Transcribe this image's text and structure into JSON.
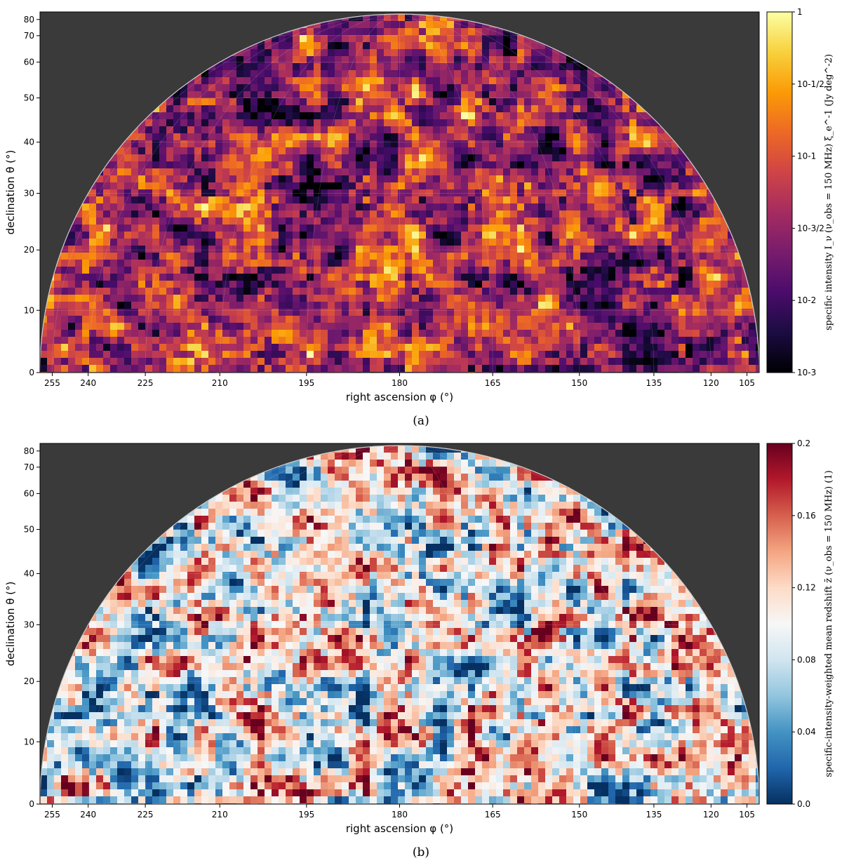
{
  "chart_data": [
    {
      "type": "heatmap",
      "panel": "(a)",
      "projection": "orthographic sky map (upper hemisphere)",
      "xlabel": "right ascension φ (°)",
      "ylabel": "declination θ (°)",
      "x_ticks": [
        255,
        240,
        225,
        210,
        195,
        180,
        165,
        150,
        135,
        120,
        105
      ],
      "y_ticks": [
        0,
        10,
        20,
        30,
        40,
        50,
        60,
        70,
        80
      ],
      "xlim": [
        258,
        102
      ],
      "ylim": [
        0,
        82
      ],
      "colormap": "inferno",
      "colorbar": {
        "label": "specific intensity I_ν (ν_obs = 150 MHz) ξ_e^-1 (Jy deg^-2)",
        "scale": "log",
        "min": 0.001,
        "max": 1,
        "tick_labels": [
          "10^-3",
          "10^-2",
          "10^-3/2",
          "10^-1",
          "10^-1/2",
          "1"
        ]
      },
      "background": "#3a3a3a",
      "grid": true
    },
    {
      "type": "heatmap",
      "panel": "(b)",
      "projection": "orthographic sky map (upper hemisphere)",
      "xlabel": "right ascension φ (°)",
      "ylabel": "declination θ (°)",
      "x_ticks": [
        255,
        240,
        225,
        210,
        195,
        180,
        165,
        150,
        135,
        120,
        105
      ],
      "y_ticks": [
        0,
        10,
        20,
        30,
        40,
        50,
        60,
        70,
        80
      ],
      "xlim": [
        258,
        102
      ],
      "ylim": [
        0,
        82
      ],
      "colormap": "RdBu_r",
      "colorbar": {
        "label": "specific-intensity-weighted mean redshift z̄ (ν_obs = 150 MHz) (1)",
        "scale": "linear",
        "min": 0.0,
        "max": 0.2,
        "tick_labels": [
          "0.0",
          "0.04",
          "0.08",
          "0.12",
          "0.16",
          "0.2"
        ]
      },
      "background": "#3a3a3a",
      "grid": true
    }
  ],
  "panels": {
    "a": {
      "tag": "(a)",
      "xlabel": "right ascension φ (°)",
      "ylabel": "declination θ (°)",
      "cb_label": "specific intensity I_ν (ν_obs = 150 MHz) ξ_e^-1 (Jy deg^-2)"
    },
    "b": {
      "tag": "(b)",
      "xlabel": "right ascension φ (°)",
      "ylabel": "declination θ (°)",
      "cb_label": "specific-intensity-weighted mean redshift z̄ (ν_obs = 150 MHz) (1)"
    }
  },
  "colors": {
    "background_outside_sky": "#3a3a3a",
    "inferno_stops": [
      "#000004",
      "#1b0c41",
      "#4a0c6b",
      "#781c6d",
      "#a52c60",
      "#cf4446",
      "#ed6925",
      "#fb9b06",
      "#f7d13d",
      "#fcffa4"
    ],
    "rdbu_stops": [
      "#053061",
      "#2166ac",
      "#4393c3",
      "#92c5de",
      "#d1e5f0",
      "#f7f7f7",
      "#fddbc7",
      "#f4a582",
      "#d6604d",
      "#b2182b",
      "#67001f"
    ]
  }
}
